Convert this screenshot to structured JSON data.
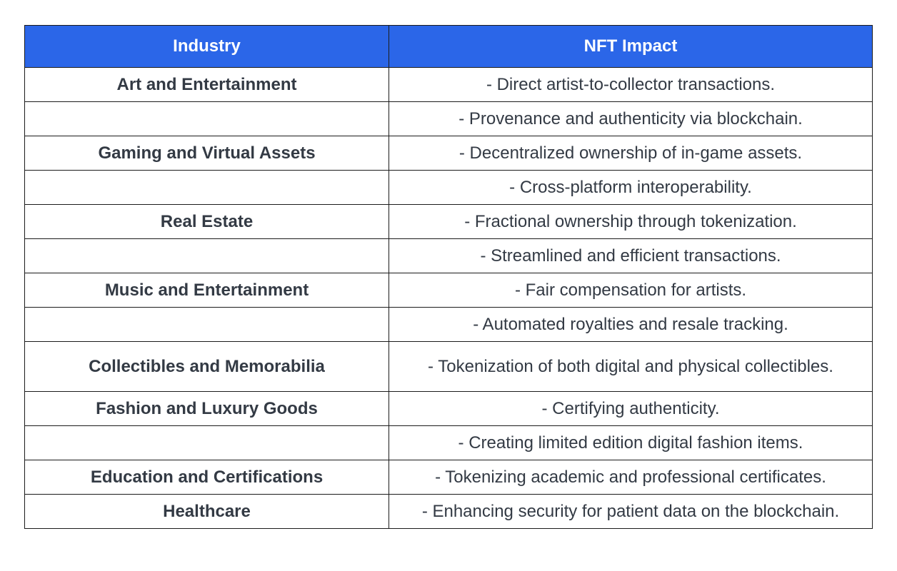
{
  "table": {
    "headers": [
      "Industry",
      "NFT Impact"
    ],
    "rows": [
      {
        "industry": "Art and Entertainment",
        "impact": "- Direct artist-to-collector transactions."
      },
      {
        "industry": "",
        "impact": "- Provenance and authenticity via blockchain."
      },
      {
        "industry": "Gaming and Virtual Assets",
        "impact": "- Decentralized ownership of in-game assets."
      },
      {
        "industry": "",
        "impact": "- Cross-platform interoperability."
      },
      {
        "industry": "Real Estate",
        "impact": "- Fractional ownership through tokenization."
      },
      {
        "industry": "",
        "impact": "- Streamlined and efficient transactions."
      },
      {
        "industry": "Music and Entertainment",
        "impact": "- Fair compensation for artists."
      },
      {
        "industry": "",
        "impact": "- Automated royalties and resale tracking."
      },
      {
        "industry": "Collectibles and Memorabilia",
        "impact": "- Tokenization of both digital and physical collectibles."
      },
      {
        "industry": "Fashion and Luxury Goods",
        "impact": "- Certifying authenticity."
      },
      {
        "industry": "",
        "impact": "- Creating limited edition digital fashion items."
      },
      {
        "industry": "Education and Certifications",
        "impact": "- Tokenizing academic and professional certificates."
      },
      {
        "industry": "Healthcare",
        "impact": "- Enhancing security for patient data on the blockchain."
      }
    ]
  },
  "colors": {
    "header_bg": "#2b66e8",
    "header_text": "#ffffff",
    "body_text": "#333a44",
    "border": "#1b1b1b"
  }
}
